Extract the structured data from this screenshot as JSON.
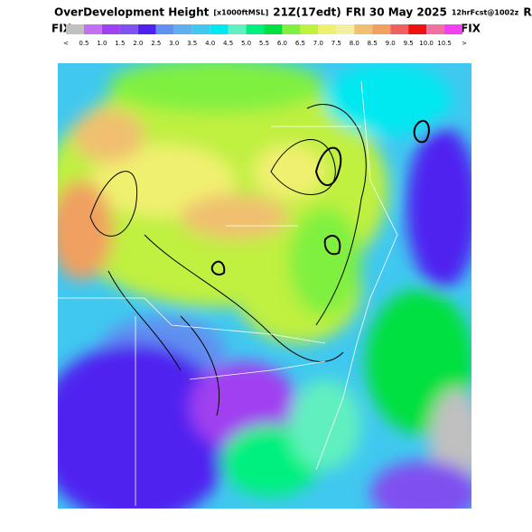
{
  "header": {
    "title_parts": [
      "OverDevelopment Height",
      "[x1000ftMSL]",
      "21Z(17edt)",
      "FRI 30 May 2025",
      "12hrFcst@1002z",
      "RAP"
    ],
    "left_label": "FIX",
    "right_label": "FIX",
    "scroll_left": "<",
    "scroll_right": ">"
  },
  "colorbar": {
    "labels": [
      "0.5",
      "1.0",
      "1.5",
      "2.0",
      "2.5",
      "3.0",
      "3.5",
      "4.0",
      "4.5",
      "5.0",
      "5.5",
      "6.0",
      "6.5",
      "7.0",
      "7.5",
      "8.0",
      "8.5",
      "9.0",
      "9.5",
      "10.0",
      "10.5"
    ],
    "colors": [
      "#c0c0c0",
      "#c070f0",
      "#a040f0",
      "#8050f0",
      "#5020f0",
      "#6090f0",
      "#60b0f0",
      "#40c8f0",
      "#00e8f0",
      "#60f0c0",
      "#00f080",
      "#00e040",
      "#80f040",
      "#c0f040",
      "#f0f070",
      "#f0f0a0",
      "#f0c070",
      "#f0a060",
      "#f06060",
      "#f01010",
      "#f070a0",
      "#f040f0"
    ]
  }
}
